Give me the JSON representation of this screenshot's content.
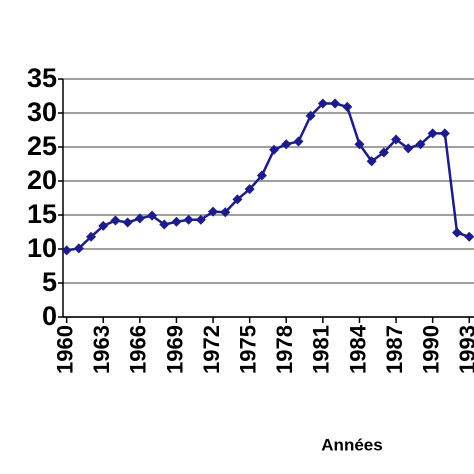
{
  "chart_data": {
    "type": "line",
    "x_label": "Années",
    "x": [
      1960,
      1961,
      1962,
      1963,
      1964,
      1965,
      1966,
      1967,
      1968,
      1969,
      1970,
      1971,
      1972,
      1973,
      1974,
      1975,
      1976,
      1977,
      1978,
      1979,
      1980,
      1981,
      1982,
      1983,
      1984,
      1985,
      1986,
      1987,
      1988,
      1989,
      1990,
      1991,
      1992,
      1993
    ],
    "series": [
      {
        "color": "#1c1c8a",
        "values": [
          9.8,
          10.1,
          11.8,
          13.4,
          14.2,
          13.9,
          14.5,
          14.9,
          13.6,
          14.0,
          14.3,
          14.3,
          15.5,
          15.4,
          17.3,
          18.8,
          20.8,
          24.6,
          25.4,
          25.8,
          29.6,
          31.4,
          31.4,
          30.9,
          25.4,
          22.9,
          24.2,
          26.1,
          24.8,
          25.4,
          27.0,
          27.0,
          12.4,
          11.8
        ]
      }
    ],
    "xlim": [
      1959.7,
      1994.5
    ],
    "xticks": [
      1960,
      1963,
      1966,
      1969,
      1972,
      1975,
      1978,
      1981,
      1984,
      1987,
      1990,
      1993
    ],
    "ylim": [
      0,
      35
    ],
    "yticks": [
      0,
      5,
      10,
      15,
      20,
      25,
      30,
      35
    ],
    "grid": true
  }
}
